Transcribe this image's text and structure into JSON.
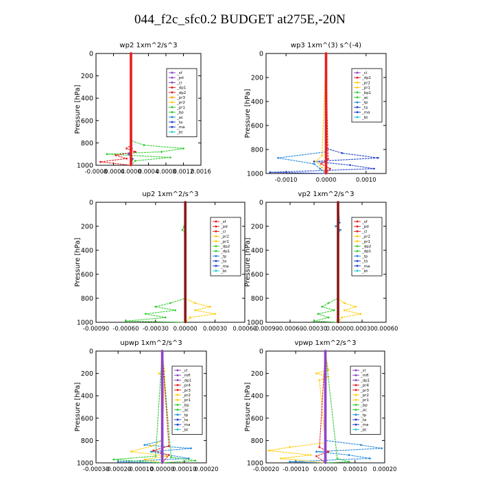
{
  "title": "044_f2c_sfc0.2  BUDGET at275E,-20N",
  "chart_data": [
    {
      "type": "line",
      "title": "wp2   1xm^2/s^3",
      "ylabel": "Pressure  [hPa]",
      "ylim": [
        1000,
        0
      ],
      "yticks": [
        0,
        200,
        400,
        600,
        800,
        1000
      ],
      "xlim": [
        -0.0008,
        0.0016
      ],
      "xticks": [
        -0.0008,
        -0.0004,
        0.0,
        0.0004,
        0.0008,
        0.0012,
        0.0016
      ],
      "xtick_labels": [
        "-0.0008",
        "-0.0004",
        "0.0000",
        "0.0004",
        "0.0008",
        "0.0012",
        "0.0016"
      ],
      "legend_position": "top-right",
      "legend": [
        {
          "name": "_sf",
          "color": "#8e44c8"
        },
        {
          "name": "_pd",
          "color": "#8e44c8"
        },
        {
          "name": "_cl",
          "color": "#8e44c8"
        },
        {
          "name": "_dp1",
          "color": "#e62020"
        },
        {
          "name": "_dp2",
          "color": "#e62020"
        },
        {
          "name": "_pr3",
          "color": "#ff9900"
        },
        {
          "name": "_pr2",
          "color": "#ffcc00"
        },
        {
          "name": "_pr1",
          "color": "#33cc33"
        },
        {
          "name": "_bp",
          "color": "#33cc33"
        },
        {
          "name": "_ac",
          "color": "#2288dd"
        },
        {
          "name": "_ta",
          "color": "#2244cc"
        },
        {
          "name": "_ma",
          "color": "#2244cc"
        },
        {
          "name": "_bt",
          "color": "#22cccc"
        }
      ],
      "series": [
        {
          "name": "_pr1",
          "color": "#33cc33",
          "pressure": [
            0,
            780,
            820,
            850,
            880,
            900,
            930,
            960,
            1000
          ],
          "values": [
            0,
            0,
            0.0003,
            0.0012,
            0.0007,
            -0.00055,
            0.0009,
            0.0001,
            0
          ]
        },
        {
          "name": "_dp1",
          "color": "#e62020",
          "pressure": [
            0,
            820,
            850,
            880,
            910,
            940,
            970,
            1000
          ],
          "values": [
            0,
            0,
            -0.0001,
            0.0001,
            -0.00035,
            -0.0001,
            -0.0007,
            0
          ]
        },
        {
          "name": "_ac",
          "color": "#2288dd",
          "pressure": [
            0,
            870,
            900,
            940,
            1000
          ],
          "values": [
            0,
            0,
            -6e-05,
            4e-05,
            0
          ]
        },
        {
          "name": "_cl",
          "color": "#8e44c8",
          "pressure": [
            0,
            850,
            900,
            950,
            1000
          ],
          "values": [
            1e-05,
            2e-05,
            -4e-05,
            3e-05,
            0
          ]
        }
      ]
    },
    {
      "type": "line",
      "title": "wp3   1xm^(3) s^(-4)",
      "ylabel": "Pressure  [hPa]",
      "ylim": [
        1000,
        0
      ],
      "yticks": [
        0,
        200,
        400,
        600,
        800,
        1000
      ],
      "xlim": [
        -0.0015,
        0.0015
      ],
      "xticks": [
        -0.001,
        0.0,
        0.001
      ],
      "xtick_labels": [
        "-0.0010",
        "0.0000",
        "0.0010"
      ],
      "legend_position": "top-right",
      "legend": [
        {
          "name": "_cl",
          "color": "#8e44c8"
        },
        {
          "name": "_dp1",
          "color": "#e62020"
        },
        {
          "name": "_pr2",
          "color": "#ffcc00"
        },
        {
          "name": "_pr1",
          "color": "#ffcc00"
        },
        {
          "name": "_bp1",
          "color": "#33cc33"
        },
        {
          "name": "_ac",
          "color": "#33cc33"
        },
        {
          "name": "_tp",
          "color": "#2288dd"
        },
        {
          "name": "_ta",
          "color": "#2244cc"
        },
        {
          "name": "_ma",
          "color": "#2244cc"
        },
        {
          "name": "_bt",
          "color": "#22cccc"
        }
      ],
      "series": [
        {
          "name": "_ta",
          "color": "#2244cc",
          "pressure": [
            0,
            790,
            830,
            870,
            900,
            930,
            960,
            990,
            1000
          ],
          "values": [
            0,
            0,
            0.0004,
            0.0013,
            -0.0003,
            0.0006,
            0.0012,
            -0.0014,
            0
          ]
        },
        {
          "name": "_tp",
          "color": "#2288dd",
          "pressure": [
            0,
            820,
            870,
            920,
            960,
            1000
          ],
          "values": [
            0,
            0,
            -0.0012,
            -0.0003,
            -0.00015,
            0
          ]
        },
        {
          "name": "_pr1",
          "color": "#ffcc00",
          "pressure": [
            0,
            850,
            900,
            950,
            1000
          ],
          "values": [
            0,
            -0.0001,
            -0.00025,
            -0.0001,
            0
          ]
        },
        {
          "name": "_dp1",
          "color": "#e62020",
          "pressure": [
            0,
            880,
            920,
            960,
            1000
          ],
          "values": [
            0,
            5e-05,
            -0.00012,
            0.0001,
            0
          ]
        }
      ]
    },
    {
      "type": "line",
      "title": "up2   1xm^2/s^3",
      "ylabel": "Pressure  [hPa]",
      "ylim": [
        1000,
        0
      ],
      "yticks": [
        0,
        200,
        400,
        600,
        800,
        1000
      ],
      "xlim": [
        -0.0009,
        0.0006
      ],
      "xticks": [
        -0.0009,
        -0.0006,
        -0.0003,
        0.0,
        0.0003,
        0.0006
      ],
      "xtick_labels": [
        "-0.00090",
        "-0.00060",
        "-0.00030",
        "0.00000",
        "0.00030",
        "0.00060"
      ],
      "legend_position": "top-right",
      "legend": [
        {
          "name": "_sf",
          "color": "#e62020"
        },
        {
          "name": "_pd",
          "color": "#e62020"
        },
        {
          "name": "_cl",
          "color": "#e62020"
        },
        {
          "name": "_pr2",
          "color": "#ffcc00"
        },
        {
          "name": "_pr1",
          "color": "#ffcc00"
        },
        {
          "name": "_dp2",
          "color": "#33cc33"
        },
        {
          "name": "_dp1",
          "color": "#33cc33"
        },
        {
          "name": "_tp",
          "color": "#2288dd"
        },
        {
          "name": "_ta",
          "color": "#2244cc"
        },
        {
          "name": "_ma",
          "color": "#2244cc"
        },
        {
          "name": "_bt",
          "color": "#22cccc"
        }
      ],
      "series": [
        {
          "name": "_dp1",
          "color": "#33cc33",
          "pressure": [
            0,
            200,
            230,
            260,
            800,
            840,
            870,
            900,
            930,
            960,
            990,
            1000
          ],
          "values": [
            0,
            -1e-05,
            -3e-05,
            0,
            0,
            -0.00015,
            -0.0003,
            -0.0001,
            -0.0004,
            -0.0002,
            -0.0006,
            0
          ]
        },
        {
          "name": "_pr1",
          "color": "#ffcc00",
          "pressure": [
            0,
            800,
            840,
            870,
            900,
            930,
            960,
            1000
          ],
          "values": [
            0,
            0,
            0.0001,
            0.00025,
            0.0001,
            0.0003,
            5e-05,
            0
          ]
        },
        {
          "name": "_sf",
          "color": "#e62020",
          "pressure": [
            0,
            1000
          ],
          "values": [
            0,
            0
          ]
        }
      ]
    },
    {
      "type": "line",
      "title": "vp2   1xm^2/s^3",
      "ylabel": "Pressure  [hPa]",
      "ylim": [
        1000,
        0
      ],
      "yticks": [
        0,
        200,
        400,
        600,
        800,
        1000
      ],
      "xlim": [
        -0.0009,
        0.0006
      ],
      "xticks": [
        -0.0009,
        -0.0006,
        -0.0003,
        0.0,
        0.0003,
        0.0006
      ],
      "xtick_labels": [
        "-0.00090",
        "-0.00060",
        "-0.00030",
        "0.00000",
        "0.00030",
        "0.00060"
      ],
      "legend_position": "top-right",
      "legend": [
        {
          "name": "_sf",
          "color": "#e62020"
        },
        {
          "name": "_pd",
          "color": "#e62020"
        },
        {
          "name": "_cl",
          "color": "#e62020"
        },
        {
          "name": "_pr2",
          "color": "#ffcc00"
        },
        {
          "name": "_pr1",
          "color": "#ffcc00"
        },
        {
          "name": "_dp2",
          "color": "#33cc33"
        },
        {
          "name": "_dp1",
          "color": "#33cc33"
        },
        {
          "name": "_tp",
          "color": "#2288dd"
        },
        {
          "name": "_ta",
          "color": "#2244cc"
        },
        {
          "name": "_ma",
          "color": "#2244cc"
        },
        {
          "name": "_bt",
          "color": "#22cccc"
        }
      ],
      "series": [
        {
          "name": "_dp1",
          "color": "#33cc33",
          "pressure": [
            0,
            800,
            840,
            870,
            900,
            930,
            960,
            990,
            1000
          ],
          "values": [
            0,
            0,
            -0.00012,
            -0.0002,
            -5e-05,
            -0.00025,
            -0.00012,
            -0.0003,
            0
          ]
        },
        {
          "name": "_pr1",
          "color": "#ffcc00",
          "pressure": [
            0,
            800,
            840,
            870,
            900,
            930,
            960,
            1000
          ],
          "values": [
            0,
            0,
            8e-05,
            0.00022,
            8e-05,
            0.00028,
            5e-05,
            0
          ]
        },
        {
          "name": "_tp",
          "color": "#2288dd",
          "pressure": [
            0,
            170,
            200,
            230,
            260,
            1000
          ],
          "values": [
            0,
            2e-05,
            -3e-05,
            3e-05,
            0,
            0
          ]
        },
        {
          "name": "_sf",
          "color": "#e62020",
          "pressure": [
            0,
            1000
          ],
          "values": [
            0,
            0
          ]
        }
      ]
    },
    {
      "type": "line",
      "title": "upwp   1xm^2/s^3",
      "ylabel": "Pressure  [hPa]",
      "ylim": [
        1000,
        0
      ],
      "yticks": [
        0,
        200,
        400,
        600,
        800,
        1000
      ],
      "xlim": [
        -0.0003,
        0.0002
      ],
      "xticks": [
        -0.0003,
        -0.0002,
        -0.0001,
        0.0,
        0.0001,
        0.0002
      ],
      "xtick_labels": [
        "-0.00030",
        "-0.00020",
        "-0.00010",
        "0.00000",
        "0.00010",
        "0.00020"
      ],
      "legend_position": "top-right",
      "legend": [
        {
          "name": "_cl",
          "color": "#8e44c8"
        },
        {
          "name": "_mfl",
          "color": "#8e44c8"
        },
        {
          "name": "_dp1",
          "color": "#8e44c8"
        },
        {
          "name": "_pr4",
          "color": "#e62020"
        },
        {
          "name": "_pr3",
          "color": "#e62020"
        },
        {
          "name": "_pr2",
          "color": "#ffcc00"
        },
        {
          "name": "_pr1",
          "color": "#ffcc00"
        },
        {
          "name": "_bp",
          "color": "#33cc33"
        },
        {
          "name": "_ac",
          "color": "#33cc33"
        },
        {
          "name": "_tp",
          "color": "#2288dd"
        },
        {
          "name": "_ta",
          "color": "#2244cc"
        },
        {
          "name": "_ma",
          "color": "#2244cc"
        },
        {
          "name": "_bt",
          "color": "#22cccc"
        }
      ],
      "series": [
        {
          "name": "_tp",
          "color": "#2288dd",
          "pressure": [
            0,
            800,
            840,
            870,
            900,
            930,
            960,
            990,
            1000
          ],
          "values": [
            0,
            0,
            -8e-05,
            0.00013,
            -5e-05,
            3e-05,
            0.00012,
            -0.0002,
            0
          ]
        },
        {
          "name": "_pr1",
          "color": "#ffcc00",
          "pressure": [
            0,
            180,
            200,
            230,
            800,
            850,
            900,
            940,
            970,
            1000
          ],
          "values": [
            0,
            1e-05,
            -1.5e-05,
            1e-05,
            0,
            -5e-05,
            -0.00014,
            2e-05,
            -8e-05,
            0
          ]
        },
        {
          "name": "_bp",
          "color": "#33cc33",
          "pressure": [
            0,
            940,
            970,
            1000
          ],
          "values": [
            0,
            -3e-05,
            -0.00022,
            0
          ]
        },
        {
          "name": "_ac",
          "color": "#33cc33",
          "pressure": [
            0,
            950,
            980,
            1000
          ],
          "values": [
            0,
            4e-05,
            0.00015,
            0
          ]
        },
        {
          "name": "_pr4",
          "color": "#e62020",
          "pressure": [
            0,
            850,
            890,
            930,
            1000
          ],
          "values": [
            0,
            3e-05,
            -4e-05,
            3e-05,
            0
          ]
        }
      ]
    },
    {
      "type": "line",
      "title": "vpwp   1xm^2/s^3",
      "ylabel": "Pressure  [hPa]",
      "ylim": [
        1000,
        0
      ],
      "yticks": [
        0,
        200,
        400,
        600,
        800,
        1000
      ],
      "xlim": [
        -0.0002,
        0.0002
      ],
      "xticks": [
        -0.0002,
        -0.0001,
        0.0,
        0.0001,
        0.0002
      ],
      "xtick_labels": [
        "-0.00020",
        "-0.00010",
        "0.00000",
        "0.00010",
        "0.00020"
      ],
      "legend_position": "top-right",
      "legend": [
        {
          "name": "_cl",
          "color": "#8e44c8"
        },
        {
          "name": "_mfl",
          "color": "#8e44c8"
        },
        {
          "name": "_dp1",
          "color": "#8e44c8"
        },
        {
          "name": "_pr4",
          "color": "#e62020"
        },
        {
          "name": "_pr3",
          "color": "#e62020"
        },
        {
          "name": "_pr2",
          "color": "#ffcc00"
        },
        {
          "name": "_pr1",
          "color": "#ffcc00"
        },
        {
          "name": "_bp",
          "color": "#33cc33"
        },
        {
          "name": "_ac",
          "color": "#33cc33"
        },
        {
          "name": "_tp",
          "color": "#2288dd"
        },
        {
          "name": "_ta",
          "color": "#2244cc"
        },
        {
          "name": "_ma",
          "color": "#2244cc"
        },
        {
          "name": "_bt",
          "color": "#22cccc"
        }
      ],
      "series": [
        {
          "name": "_tp",
          "color": "#2288dd",
          "pressure": [
            0,
            800,
            840,
            870,
            900,
            930,
            960,
            990,
            1000
          ],
          "values": [
            0,
            0,
            0.00012,
            0.00019,
            -3e-05,
            8e-05,
            0.00015,
            -0.00012,
            0
          ]
        },
        {
          "name": "_pr1",
          "color": "#ffcc00",
          "pressure": [
            0,
            170,
            200,
            230,
            260,
            820,
            860,
            890,
            930,
            960,
            1000
          ],
          "values": [
            0,
            1e-05,
            -3e-05,
            1e-05,
            -2e-05,
            0,
            -0.00012,
            -0.00019,
            -5e-05,
            -0.00015,
            0
          ]
        },
        {
          "name": "_pr4",
          "color": "#e62020",
          "pressure": [
            0,
            860,
            900,
            940,
            1000
          ],
          "values": [
            0,
            -2e-05,
            1e-05,
            -3e-05,
            0
          ]
        },
        {
          "name": "_ac",
          "color": "#33cc33",
          "pressure": [
            0,
            960,
            990,
            1000
          ],
          "values": [
            0,
            4e-05,
            8e-05,
            0
          ]
        }
      ]
    }
  ]
}
